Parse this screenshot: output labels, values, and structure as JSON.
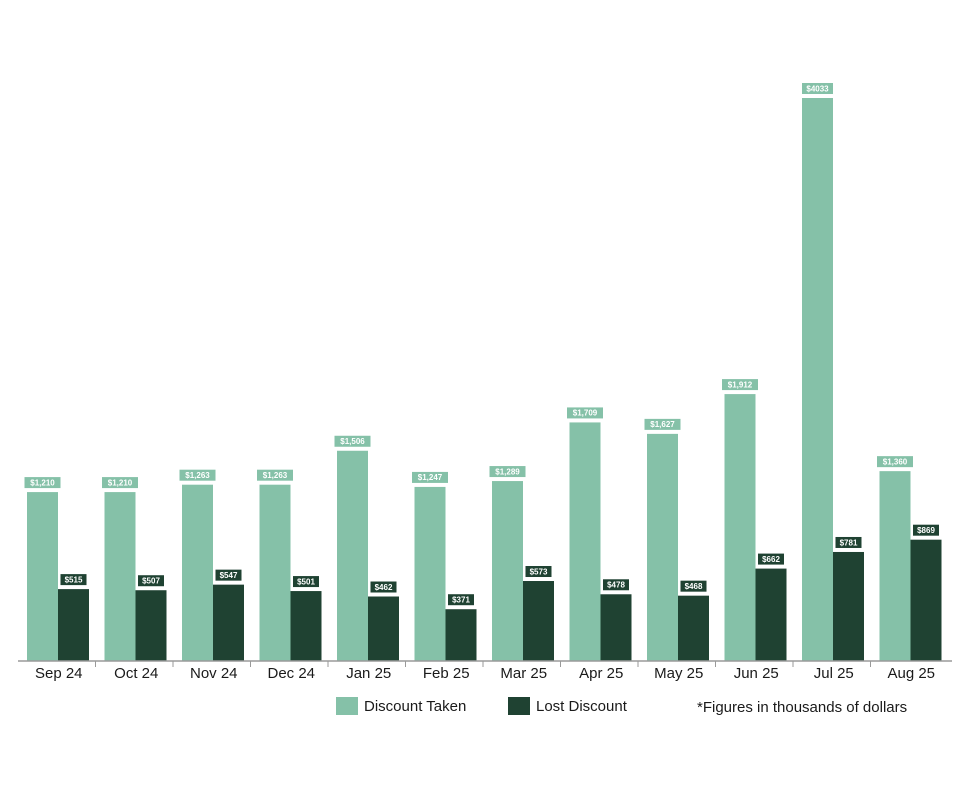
{
  "chart_data": {
    "type": "bar",
    "categories": [
      "Sep 24",
      "Oct 24",
      "Nov 24",
      "Dec 24",
      "Jan 25",
      "Feb 25",
      "Mar 25",
      "Apr 25",
      "May 25",
      "Jun 25",
      "Jul 25",
      "Aug 25"
    ],
    "series": [
      {
        "name": "Discount Taken",
        "color": "#85c1a8",
        "values": [
          1210,
          1210,
          1263,
          1263,
          1506,
          1247,
          1289,
          1709,
          1627,
          1912,
          4033,
          1360
        ],
        "labels": [
          "$1,210",
          "$1,210",
          "$1,263",
          "$1,263",
          "$1,506",
          "$1,247",
          "$1,289",
          "$1,709",
          "$1,627",
          "$1,912",
          "$4033",
          "$1,360"
        ]
      },
      {
        "name": "Lost Discount",
        "color": "#1f4232",
        "values": [
          515,
          507,
          547,
          501,
          462,
          371,
          573,
          478,
          468,
          662,
          781,
          869
        ],
        "labels": [
          "$515",
          "$507",
          "$547",
          "$501",
          "$462",
          "$371",
          "$573",
          "$478",
          "$468",
          "$662",
          "$781",
          "$869"
        ]
      }
    ],
    "ylim": [
      0,
      4200
    ],
    "grid": false,
    "legend_position": "bottom",
    "note": "*Figures in thousands of dollars"
  }
}
